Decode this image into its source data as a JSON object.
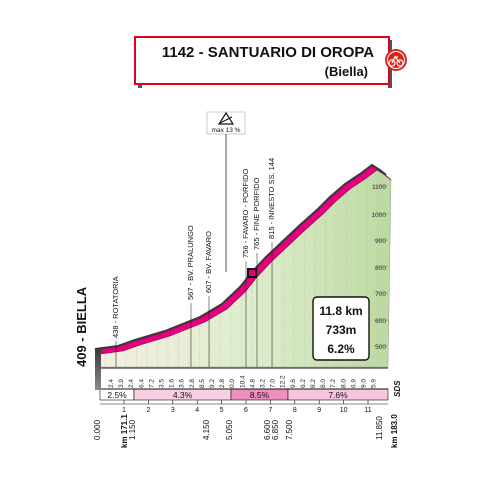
{
  "header": {
    "title": "1142 - SANTUARIO DI OROPA",
    "subtitle": "(Biella)",
    "icon": "finish-flag-icon"
  },
  "start": {
    "label": "409 - BIELLA"
  },
  "max_gradient": {
    "label": "max 13 %"
  },
  "waypoints": [
    {
      "label": "438 - ROTATORIA"
    },
    {
      "label": "567 - BV. PRALUNGO"
    },
    {
      "label": "607 - BV. FAVARO"
    },
    {
      "label": "756 - FAVARO - PORFIDO"
    },
    {
      "label": "765 - FINE PORFIDO"
    },
    {
      "label": "815 - INNESTO SS. 144"
    }
  ],
  "summary": {
    "distance": "11.8 km",
    "gain": "733m",
    "avg_grade": "6.2%"
  },
  "sds_label": "SDS",
  "y_ticks": [
    "1100",
    "1000",
    "900",
    "800",
    "700",
    "600",
    "500"
  ],
  "segment_grades": [
    "2.4",
    "3.9",
    "2.4",
    "6.4",
    "7.2",
    "3.5",
    "1.6",
    "3.6",
    "2.8",
    "8.5",
    "9.2",
    "2.8",
    "0.0",
    "10.4",
    "4.8",
    "3.2",
    "7.0",
    "12.2",
    "9.6",
    "6.2",
    "8.2",
    "8.0",
    "7.2",
    "8.0",
    "6.9",
    "9.0",
    "5.9"
  ],
  "grade_bands": [
    "2.5%",
    "4.3%",
    "8.5%",
    "7.6%"
  ],
  "km_axis": [
    "1",
    "2",
    "3",
    "4",
    "5",
    "6",
    "7",
    "8",
    "9",
    "10",
    "11"
  ],
  "bottom": {
    "start_km": "0.000",
    "start_total": "km 171.1",
    "distances": [
      "1.150",
      "4.150",
      "5.050",
      "6.600",
      "6.850",
      "7.500"
    ],
    "end_km": "11.850",
    "end_total": "km 183.0"
  },
  "colors": {
    "road": "#e6007e",
    "slope_fill": "#c8e0b0",
    "title_border": "#e2001a",
    "icon_red": "#d9261c",
    "bands": [
      "#ffffff",
      "#f7d0e3",
      "#ef8fbf",
      "#f7c6de"
    ]
  }
}
